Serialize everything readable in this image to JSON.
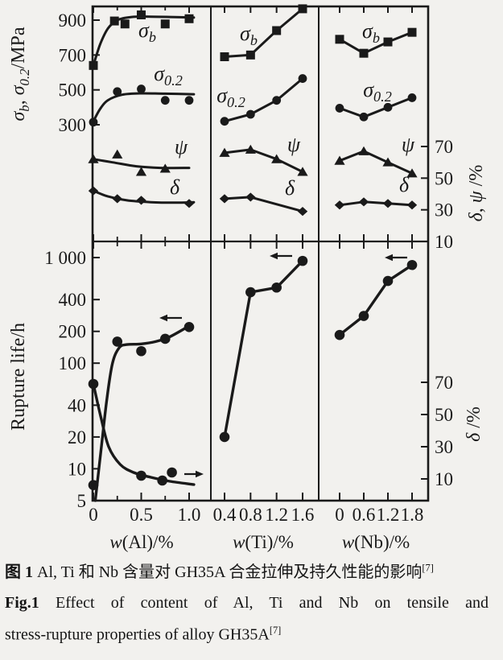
{
  "colors": {
    "ink": "#1a1a1a",
    "paper": "#f2f1ee"
  },
  "caption": {
    "zh_bold": "图 1",
    "zh_text": " Al, Ti 和 Nb 含量对 GH35A 合金拉伸及持久性能的影响",
    "zh_ref": "[7]",
    "en_bold": "Fig.1",
    "en_line1": "Effect of content of Al, Ti and Nb on tensile and",
    "en_line2": "stress-rupture properties of alloy GH35A",
    "en_ref": "[7]"
  },
  "chart_data": {
    "type": "line",
    "rows": {
      "top": {
        "y_left": {
          "label_parts": [
            {
              "t": "σ",
              "i": 1
            },
            {
              "t": "b",
              "i": 1,
              "sub": 1
            },
            {
              "t": ", "
            },
            {
              "t": "σ",
              "i": 1
            },
            {
              "t": "0.2",
              "i": 1,
              "sub": 1
            },
            {
              "t": "/MPa"
            }
          ],
          "scale": "linear",
          "ticks": [
            300,
            500,
            700,
            900
          ],
          "tick_labels": [
            "300",
            "500",
            "700",
            "900"
          ],
          "range": [
            250,
            975
          ]
        },
        "y_right": {
          "label_parts": [
            {
              "t": "δ",
              "i": 1
            },
            {
              "t": ", "
            },
            {
              "t": "ψ",
              "i": 1
            },
            {
              "t": " /%"
            }
          ],
          "scale": "linear",
          "ticks": [
            10,
            30,
            50,
            70
          ],
          "tick_labels": [
            "10",
            "30",
            "50",
            "70"
          ],
          "range": [
            10,
            72
          ]
        }
      },
      "bottom": {
        "y_left": {
          "label_parts": [
            {
              "t": "Rupture life/h"
            }
          ],
          "scale": "log",
          "ticks": [
            5,
            10,
            20,
            40,
            100,
            200,
            400,
            1000
          ],
          "tick_labels": [
            "5",
            "10",
            "20",
            "40",
            "100",
            "200",
            "400",
            "1 000"
          ],
          "range": [
            5,
            1000
          ]
        },
        "y_right": {
          "label_parts": [
            {
              "t": "δ",
              "i": 1
            },
            {
              "t": " /%"
            }
          ],
          "scale": "linear",
          "ticks": [
            10,
            30,
            50,
            70
          ],
          "tick_labels": [
            "10",
            "30",
            "50",
            "70"
          ],
          "range": [
            10,
            73
          ]
        }
      }
    },
    "x_axes": {
      "al": {
        "title_parts": [
          {
            "t": "w",
            "i": 1
          },
          {
            "t": "(Al)/%"
          }
        ],
        "ticks": [
          0,
          0.5,
          1.0
        ],
        "tick_labels": [
          "0",
          "0.5",
          "1.0"
        ],
        "minor_ticks": [
          0.25,
          0.75
        ],
        "range": [
          0,
          1.05
        ]
      },
      "ti": {
        "title_parts": [
          {
            "t": "w",
            "i": 1
          },
          {
            "t": "(Ti)/%"
          }
        ],
        "ticks": [
          0.4,
          0.8,
          1.2,
          1.6
        ],
        "tick_labels": [
          "0.4",
          "0.8",
          "1.2",
          "1.6"
        ],
        "minor_ticks": [],
        "range": [
          0.25,
          1.75
        ]
      },
      "nb": {
        "title_parts": [
          {
            "t": "w",
            "i": 1
          },
          {
            "t": "(Nb)/%"
          }
        ],
        "ticks": [
          0,
          0.6,
          1.2,
          1.8
        ],
        "tick_labels": [
          "0",
          "0.6",
          "1.2",
          "1.8"
        ],
        "minor_ticks": [],
        "range": [
          -0.4,
          2.2
        ]
      }
    },
    "panels": [
      {
        "id": "al-tensile",
        "x": "al",
        "row": "top",
        "series": [
          {
            "id": "sigma_b",
            "label_parts": [
              {
                "t": "σ",
                "i": 1
              },
              {
                "t": "b",
                "i": 1,
                "sub": 1
              }
            ],
            "marker": "square",
            "axis": "mpa",
            "smooth": true,
            "points": [
              [
                0,
                640
              ],
              [
                0.22,
                895
              ],
              [
                0.33,
                878
              ],
              [
                0.5,
                930
              ],
              [
                0.75,
                878
              ],
              [
                1.0,
                908
              ]
            ],
            "curve": [
              [
                0,
                640
              ],
              [
                0.07,
                760
              ],
              [
                0.15,
                850
              ],
              [
                0.25,
                900
              ],
              [
                0.4,
                918
              ],
              [
                0.6,
                920
              ],
              [
                0.8,
                918
              ],
              [
                1.05,
                915
              ]
            ]
          },
          {
            "id": "sigma_02",
            "label_parts": [
              {
                "t": "σ",
                "i": 1
              },
              {
                "t": "0.2",
                "i": 1,
                "sub": 1
              }
            ],
            "marker": "circle",
            "axis": "mpa",
            "smooth": true,
            "points": [
              [
                0,
                315
              ],
              [
                0.25,
                490
              ],
              [
                0.5,
                505
              ],
              [
                0.75,
                440
              ],
              [
                1.0,
                440
              ]
            ],
            "curve": [
              [
                0,
                320
              ],
              [
                0.07,
                390
              ],
              [
                0.15,
                440
              ],
              [
                0.3,
                472
              ],
              [
                0.5,
                480
              ],
              [
                0.75,
                478
              ],
              [
                1.05,
                475
              ]
            ]
          },
          {
            "id": "psi",
            "label_parts": [
              {
                "t": "ψ",
                "i": 1
              }
            ],
            "marker": "triangle",
            "axis": "pct_top",
            "smooth": true,
            "points": [
              [
                0,
                62
              ],
              [
                0.25,
                65
              ],
              [
                0.5,
                54
              ],
              [
                0.75,
                56
              ]
            ],
            "curve": [
              [
                0,
                62
              ],
              [
                0.2,
                60
              ],
              [
                0.45,
                57.5
              ],
              [
                0.7,
                56.5
              ],
              [
                1.0,
                56.5
              ]
            ]
          },
          {
            "id": "delta",
            "label_parts": [
              {
                "t": "δ",
                "i": 1
              }
            ],
            "marker": "diamond",
            "axis": "pct_top",
            "smooth": true,
            "points": [
              [
                0,
                42
              ],
              [
                0.25,
                37
              ],
              [
                0.5,
                36
              ],
              [
                1.0,
                34
              ]
            ],
            "curve": [
              [
                0,
                42
              ],
              [
                0.15,
                38.5
              ],
              [
                0.35,
                36
              ],
              [
                0.6,
                34.8
              ],
              [
                0.85,
                34.5
              ],
              [
                1.05,
                34.8
              ]
            ]
          }
        ]
      },
      {
        "id": "ti-tensile",
        "x": "ti",
        "row": "top",
        "series": [
          {
            "id": "sigma_b",
            "label_parts": [
              {
                "t": "σ",
                "i": 1
              },
              {
                "t": "b",
                "i": 1,
                "sub": 1
              }
            ],
            "marker": "square",
            "axis": "mpa",
            "points": [
              [
                0.4,
                690
              ],
              [
                0.8,
                700
              ],
              [
                1.2,
                840
              ],
              [
                1.6,
                965
              ]
            ]
          },
          {
            "id": "sigma_02",
            "label_parts": [
              {
                "t": "σ",
                "i": 1
              },
              {
                "t": "0.2",
                "i": 1,
                "sub": 1
              }
            ],
            "marker": "circle",
            "axis": "mpa",
            "points": [
              [
                0.4,
                320
              ],
              [
                0.8,
                360
              ],
              [
                1.2,
                440
              ],
              [
                1.6,
                565
              ]
            ]
          },
          {
            "id": "psi",
            "label_parts": [
              {
                "t": "ψ",
                "i": 1
              }
            ],
            "marker": "triangle",
            "axis": "pct_top",
            "points": [
              [
                0.4,
                66
              ],
              [
                0.8,
                68
              ],
              [
                1.2,
                62
              ],
              [
                1.6,
                54
              ]
            ]
          },
          {
            "id": "delta",
            "label_parts": [
              {
                "t": "δ",
                "i": 1
              }
            ],
            "marker": "diamond",
            "axis": "pct_top",
            "points": [
              [
                0.4,
                37
              ],
              [
                0.8,
                38
              ],
              [
                1.6,
                29
              ]
            ]
          }
        ]
      },
      {
        "id": "nb-tensile",
        "x": "nb",
        "row": "top",
        "series": [
          {
            "id": "sigma_b",
            "label_parts": [
              {
                "t": "σ",
                "i": 1
              },
              {
                "t": "b",
                "i": 1,
                "sub": 1
              }
            ],
            "marker": "square",
            "axis": "mpa",
            "points": [
              [
                0,
                790
              ],
              [
                0.6,
                710
              ],
              [
                1.2,
                775
              ],
              [
                1.8,
                830
              ]
            ]
          },
          {
            "id": "sigma_02",
            "label_parts": [
              {
                "t": "σ",
                "i": 1
              },
              {
                "t": "0.2",
                "i": 1,
                "sub": 1
              }
            ],
            "marker": "circle",
            "axis": "mpa",
            "points": [
              [
                0,
                395
              ],
              [
                0.6,
                345
              ],
              [
                1.2,
                400
              ],
              [
                1.8,
                455
              ]
            ]
          },
          {
            "id": "psi",
            "label_parts": [
              {
                "t": "ψ",
                "i": 1
              }
            ],
            "marker": "triangle",
            "axis": "pct_top",
            "points": [
              [
                0,
                61
              ],
              [
                0.6,
                67
              ],
              [
                1.2,
                60
              ],
              [
                1.8,
                53
              ]
            ]
          },
          {
            "id": "delta",
            "label_parts": [
              {
                "t": "δ",
                "i": 1
              }
            ],
            "marker": "diamond",
            "axis": "pct_top",
            "points": [
              [
                0,
                33
              ],
              [
                0.6,
                35
              ],
              [
                1.2,
                34
              ],
              [
                1.8,
                33
              ]
            ]
          }
        ]
      },
      {
        "id": "al-rupture",
        "x": "al",
        "row": "bottom",
        "series": [
          {
            "id": "rupture_life",
            "label_parts": [],
            "marker": "circle",
            "axis": "log",
            "smooth": true,
            "arrow": "left",
            "points": [
              [
                0,
                7
              ],
              [
                0.25,
                160
              ],
              [
                0.5,
                130
              ],
              [
                0.75,
                170
              ],
              [
                1.0,
                220
              ]
            ],
            "curve": [
              [
                0.02,
                5
              ],
              [
                0.08,
                15
              ],
              [
                0.14,
                45
              ],
              [
                0.2,
                100
              ],
              [
                0.27,
                140
              ],
              [
                0.35,
                150
              ],
              [
                0.5,
                152
              ],
              [
                0.65,
                160
              ],
              [
                0.8,
                178
              ],
              [
                1.0,
                225
              ]
            ]
          },
          {
            "id": "delta_rupture",
            "label_parts": [],
            "marker": "circle",
            "axis": "pct_bot",
            "smooth": true,
            "arrow": "right",
            "points": [
              [
                0,
                69
              ],
              [
                0.5,
                12
              ],
              [
                0.72,
                9
              ],
              [
                0.82,
                14
              ]
            ],
            "curve": [
              [
                0,
                69
              ],
              [
                0.08,
                48
              ],
              [
                0.16,
                30
              ],
              [
                0.28,
                19
              ],
              [
                0.42,
                14
              ],
              [
                0.6,
                11
              ],
              [
                0.8,
                8.5
              ],
              [
                1.05,
                6.5
              ]
            ]
          }
        ]
      },
      {
        "id": "ti-rupture",
        "x": "ti",
        "row": "bottom",
        "series": [
          {
            "id": "rupture_life",
            "label_parts": [],
            "marker": "circle",
            "axis": "log",
            "arrow": "left",
            "points": [
              [
                0.4,
                20
              ],
              [
                0.8,
                470
              ],
              [
                1.2,
                520
              ],
              [
                1.6,
                930
              ]
            ]
          }
        ]
      },
      {
        "id": "nb-rupture",
        "x": "nb",
        "row": "bottom",
        "series": [
          {
            "id": "rupture_life",
            "label_parts": [],
            "marker": "circle",
            "axis": "log",
            "arrow": "left",
            "points": [
              [
                0,
                185
              ],
              [
                0.6,
                280
              ],
              [
                1.2,
                600
              ],
              [
                1.8,
                850
              ]
            ]
          }
        ]
      }
    ]
  }
}
